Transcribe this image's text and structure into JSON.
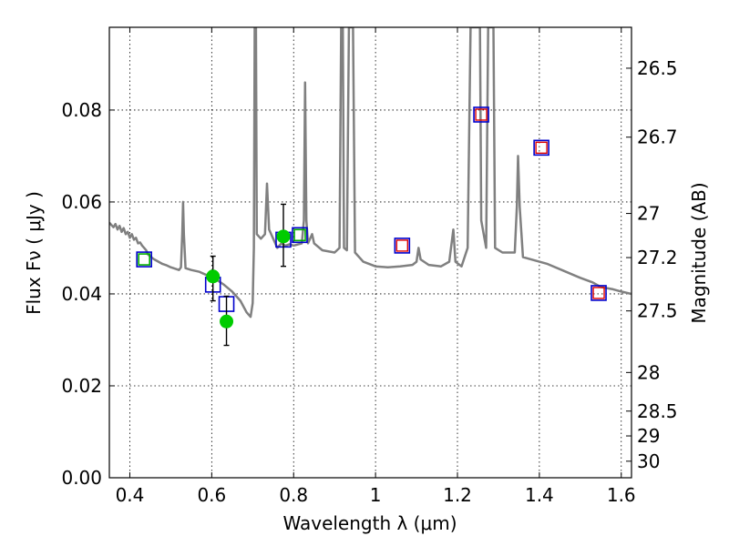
{
  "chart_data": {
    "type": "scatter",
    "xlabel": "Wavelength  λ (μm)",
    "ylabel": "Flux  Fν  ( μJy )",
    "y2label": "Magnitude (AB)",
    "xlim": [
      0.35,
      1.625
    ],
    "ylim": [
      0.0,
      0.098
    ],
    "grid": true,
    "x_ticks": [
      {
        "value": 0.4,
        "label": "0.4"
      },
      {
        "value": 0.6,
        "label": "0.6"
      },
      {
        "value": 0.8,
        "label": "0.8"
      },
      {
        "value": 1.0,
        "label": "1"
      },
      {
        "value": 1.2,
        "label": "1.2"
      },
      {
        "value": 1.4,
        "label": "1.4"
      },
      {
        "value": 1.6,
        "label": "1.6"
      }
    ],
    "y_ticks": [
      {
        "value": 0.0,
        "label": "0.00"
      },
      {
        "value": 0.02,
        "label": "0.02"
      },
      {
        "value": 0.04,
        "label": "0.04"
      },
      {
        "value": 0.06,
        "label": "0.06"
      },
      {
        "value": 0.08,
        "label": "0.08"
      }
    ],
    "y2_ticks": [
      {
        "flux": 0.0891,
        "label": "26.5"
      },
      {
        "flux": 0.0741,
        "label": "26.7"
      },
      {
        "flux": 0.0575,
        "label": "27"
      },
      {
        "flux": 0.0479,
        "label": "27.2"
      },
      {
        "flux": 0.0363,
        "label": "27.5"
      },
      {
        "flux": 0.0229,
        "label": "28"
      },
      {
        "flux": 0.0145,
        "label": "28.5"
      },
      {
        "flux": 0.0091,
        "label": "29"
      },
      {
        "flux": 0.0036,
        "label": "30"
      }
    ],
    "series": [
      {
        "kind": "line",
        "color": "#808080",
        "points": [
          [
            0.35,
            0.0555
          ],
          [
            0.36,
            0.0545
          ],
          [
            0.365,
            0.0552
          ],
          [
            0.37,
            0.054
          ],
          [
            0.375,
            0.0548
          ],
          [
            0.38,
            0.0535
          ],
          [
            0.385,
            0.0543
          ],
          [
            0.39,
            0.053
          ],
          [
            0.395,
            0.0535
          ],
          [
            0.4,
            0.0522
          ],
          [
            0.405,
            0.053
          ],
          [
            0.41,
            0.0518
          ],
          [
            0.415,
            0.0522
          ],
          [
            0.42,
            0.051
          ],
          [
            0.425,
            0.0512
          ],
          [
            0.43,
            0.0505
          ],
          [
            0.435,
            0.05
          ],
          [
            0.44,
            0.0495
          ],
          [
            0.445,
            0.0485
          ],
          [
            0.45,
            0.0482
          ],
          [
            0.455,
            0.0478
          ],
          [
            0.46,
            0.0475
          ],
          [
            0.47,
            0.047
          ],
          [
            0.48,
            0.0465
          ],
          [
            0.49,
            0.0462
          ],
          [
            0.5,
            0.0458
          ],
          [
            0.51,
            0.0455
          ],
          [
            0.52,
            0.0452
          ],
          [
            0.525,
            0.0458
          ],
          [
            0.528,
            0.053
          ],
          [
            0.53,
            0.06
          ],
          [
            0.532,
            0.053
          ],
          [
            0.536,
            0.0456
          ],
          [
            0.55,
            0.0452
          ],
          [
            0.57,
            0.0448
          ],
          [
            0.59,
            0.044
          ],
          [
            0.61,
            0.0432
          ],
          [
            0.63,
            0.042
          ],
          [
            0.65,
            0.0405
          ],
          [
            0.67,
            0.0385
          ],
          [
            0.685,
            0.036
          ],
          [
            0.695,
            0.035
          ],
          [
            0.7,
            0.038
          ],
          [
            0.703,
            0.05
          ],
          [
            0.705,
            0.098
          ],
          [
            0.708,
            0.098
          ],
          [
            0.71,
            0.053
          ],
          [
            0.72,
            0.052
          ],
          [
            0.73,
            0.053
          ],
          [
            0.735,
            0.064
          ],
          [
            0.74,
            0.054
          ],
          [
            0.75,
            0.052
          ],
          [
            0.76,
            0.05
          ],
          [
            0.77,
            0.051
          ],
          [
            0.78,
            0.0505
          ],
          [
            0.79,
            0.0508
          ],
          [
            0.8,
            0.0505
          ],
          [
            0.82,
            0.051
          ],
          [
            0.825,
            0.056
          ],
          [
            0.828,
            0.086
          ],
          [
            0.831,
            0.056
          ],
          [
            0.835,
            0.051
          ],
          [
            0.845,
            0.053
          ],
          [
            0.85,
            0.051
          ],
          [
            0.87,
            0.0495
          ],
          [
            0.9,
            0.049
          ],
          [
            0.912,
            0.05
          ],
          [
            0.916,
            0.098
          ],
          [
            0.92,
            0.098
          ],
          [
            0.923,
            0.05
          ],
          [
            0.93,
            0.0495
          ],
          [
            0.935,
            0.098
          ],
          [
            0.945,
            0.098
          ],
          [
            0.95,
            0.049
          ],
          [
            0.97,
            0.047
          ],
          [
            1.0,
            0.046
          ],
          [
            1.03,
            0.0458
          ],
          [
            1.06,
            0.046
          ],
          [
            1.09,
            0.0463
          ],
          [
            1.1,
            0.047
          ],
          [
            1.105,
            0.05
          ],
          [
            1.11,
            0.0475
          ],
          [
            1.13,
            0.0463
          ],
          [
            1.16,
            0.046
          ],
          [
            1.18,
            0.047
          ],
          [
            1.19,
            0.054
          ],
          [
            1.195,
            0.047
          ],
          [
            1.21,
            0.046
          ],
          [
            1.225,
            0.05
          ],
          [
            1.232,
            0.098
          ],
          [
            1.255,
            0.098
          ],
          [
            1.258,
            0.056
          ],
          [
            1.27,
            0.05
          ],
          [
            1.275,
            0.098
          ],
          [
            1.288,
            0.098
          ],
          [
            1.292,
            0.05
          ],
          [
            1.31,
            0.049
          ],
          [
            1.34,
            0.049
          ],
          [
            1.345,
            0.059
          ],
          [
            1.348,
            0.07
          ],
          [
            1.352,
            0.059
          ],
          [
            1.36,
            0.048
          ],
          [
            1.38,
            0.0475
          ],
          [
            1.4,
            0.047
          ],
          [
            1.42,
            0.0465
          ],
          [
            1.46,
            0.045
          ],
          [
            1.5,
            0.0435
          ],
          [
            1.53,
            0.0425
          ],
          [
            1.55,
            0.0415
          ],
          [
            1.58,
            0.041
          ],
          [
            1.6,
            0.0405
          ],
          [
            1.625,
            0.04
          ]
        ]
      },
      {
        "kind": "blue-squares",
        "color": "#0000cc",
        "points": [
          [
            0.435,
            0.0475
          ],
          [
            0.603,
            0.042
          ],
          [
            0.636,
            0.0378
          ],
          [
            0.775,
            0.0518
          ],
          [
            0.815,
            0.0528
          ],
          [
            1.065,
            0.0505
          ],
          [
            1.258,
            0.079
          ],
          [
            1.405,
            0.0718
          ],
          [
            1.545,
            0.0402
          ]
        ]
      },
      {
        "kind": "green-squares",
        "color": "#00aa00",
        "points": [
          [
            0.435,
            0.0475
          ],
          [
            0.815,
            0.0528
          ]
        ]
      },
      {
        "kind": "red-squares",
        "color": "#dd0000",
        "points": [
          [
            1.065,
            0.0505
          ],
          [
            1.258,
            0.079
          ],
          [
            1.405,
            0.0718
          ],
          [
            1.545,
            0.0402
          ]
        ]
      },
      {
        "kind": "green-circles",
        "color": "#00cc00",
        "points": [
          [
            0.603,
            0.0438
          ],
          [
            0.636,
            0.034
          ],
          [
            0.775,
            0.0525
          ]
        ],
        "yerr": [
          [
            0.0385,
            0.0482
          ],
          [
            0.0288,
            0.0395
          ],
          [
            0.046,
            0.0595
          ]
        ]
      }
    ]
  }
}
